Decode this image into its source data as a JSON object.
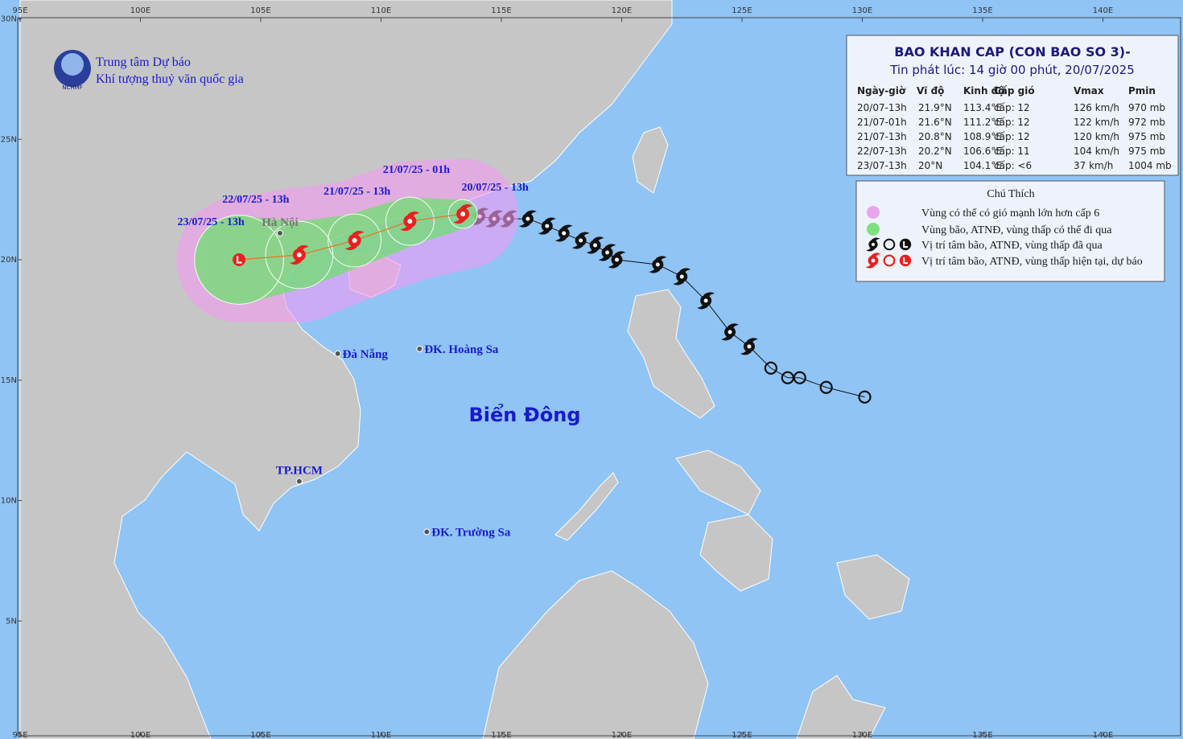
{
  "header": {
    "org_line1": "Trung tâm Dự báo",
    "org_line2": "Khí tượng thuỷ văn quốc gia",
    "logo_text": "NCHMF"
  },
  "bulletin": {
    "title": "BAO KHAN CAP (CON BAO SO 3)-",
    "issued": "Tin phát lúc: 14 giờ 00 phút, 20/07/2025",
    "columns": [
      "Ngày-giờ",
      "Vĩ độ",
      "Kinh độ",
      "Cấp gió",
      "Vmax",
      "Pmin"
    ]
  },
  "forecast": [
    {
      "time": "20/07-13h",
      "lat": 21.9,
      "lat_label": "21.9°N",
      "lon": 113.4,
      "lon_label": "113.4°E",
      "wind": "cấp: 12",
      "vmax": "126 km/h",
      "pmin": "970 mb",
      "map_label": "20/07/25 - 13h",
      "symbol": "storm",
      "r_wind": 0.6,
      "r_strong": 2.3
    },
    {
      "time": "21/07-01h",
      "lat": 21.6,
      "lat_label": "21.6°N",
      "lon": 111.2,
      "lon_label": "111.2°E",
      "wind": "cấp: 12",
      "vmax": "122 km/h",
      "pmin": "972 mb",
      "map_label": "21/07/25 - 01h",
      "symbol": "storm",
      "r_wind": 1.0,
      "r_strong": 2.5
    },
    {
      "time": "21/07-13h",
      "lat": 20.8,
      "lat_label": "20.8°N",
      "lon": 108.9,
      "lon_label": "108.9°E",
      "wind": "cấp: 12",
      "vmax": "120 km/h",
      "pmin": "975 mb",
      "map_label": "21/07/25 - 13h",
      "symbol": "storm",
      "r_wind": 1.1,
      "r_strong": 2.5
    },
    {
      "time": "22/07-13h",
      "lat": 20.2,
      "lat_label": "20.2°N",
      "lon": 106.6,
      "lon_label": "106.6°E",
      "wind": "cấp: 11",
      "vmax": "104 km/h",
      "pmin": "975 mb",
      "map_label": "22/07/25 - 13h",
      "symbol": "storm",
      "r_wind": 1.4,
      "r_strong": 2.8
    },
    {
      "time": "23/07-13h",
      "lat": 20,
      "lat_label": "20°N",
      "lon": 104.1,
      "lon_label": "104.1°E",
      "wind": "cấp: <6",
      "vmax": "37 km/h",
      "pmin": "1004 mb",
      "map_label": "23/07/25 - 13h",
      "symbol": "low",
      "r_wind": 1.85,
      "r_strong": 2.6
    }
  ],
  "past_track": {
    "storm": [
      {
        "lat": 21.8,
        "lon": 114.1
      },
      {
        "lat": 21.7,
        "lon": 114.7
      },
      {
        "lat": 21.7,
        "lon": 115.3
      },
      {
        "lat": 21.7,
        "lon": 116.1
      },
      {
        "lat": 21.4,
        "lon": 116.9
      },
      {
        "lat": 21.1,
        "lon": 117.6
      },
      {
        "lat": 20.8,
        "lon": 118.3
      },
      {
        "lat": 20.6,
        "lon": 118.9
      },
      {
        "lat": 20.3,
        "lon": 119.4
      },
      {
        "lat": 20.0,
        "lon": 119.8
      },
      {
        "lat": 19.8,
        "lon": 121.5
      },
      {
        "lat": 19.3,
        "lon": 122.5
      },
      {
        "lat": 18.3,
        "lon": 123.5
      },
      {
        "lat": 17.0,
        "lon": 124.5
      },
      {
        "lat": 16.4,
        "lon": 125.3
      }
    ],
    "depression": [
      {
        "lat": 15.5,
        "lon": 126.2
      },
      {
        "lat": 15.1,
        "lon": 126.9
      },
      {
        "lat": 15.1,
        "lon": 127.4
      },
      {
        "lat": 14.7,
        "lon": 128.5
      },
      {
        "lat": 14.3,
        "lon": 130.1
      }
    ]
  },
  "places": [
    {
      "name": "Hà Nội",
      "lat": 21.1,
      "lon": 105.8,
      "side": "above",
      "color": "#777777"
    },
    {
      "name": "Đà Nẵng",
      "lat": 16.1,
      "lon": 108.2,
      "side": "right",
      "color": "#1a1acc"
    },
    {
      "name": "ĐK. Hoàng Sa",
      "lat": 16.3,
      "lon": 111.6,
      "side": "right",
      "color": "#1a1acc"
    },
    {
      "name": "TP.HCM",
      "lat": 10.8,
      "lon": 106.6,
      "side": "above",
      "color": "#1a1acc"
    },
    {
      "name": "ĐK. Trường Sa",
      "lat": 8.7,
      "lon": 111.9,
      "side": "right",
      "color": "#1a1acc"
    }
  ],
  "sea_label": "Biển Đông",
  "lon_ticks": [
    {
      "value": 95,
      "label": "95E"
    },
    {
      "value": 100,
      "label": "100E"
    },
    {
      "value": 105,
      "label": "105E"
    },
    {
      "value": 110,
      "label": "110E"
    },
    {
      "value": 115,
      "label": "115E"
    },
    {
      "value": 120,
      "label": "120E"
    },
    {
      "value": 125,
      "label": "125E"
    },
    {
      "value": 130,
      "label": "130E"
    },
    {
      "value": 135,
      "label": "135E"
    },
    {
      "value": 140,
      "label": "140E"
    }
  ],
  "lat_ticks": [
    {
      "value": 5,
      "label": "5N"
    },
    {
      "value": 10,
      "label": "10N"
    },
    {
      "value": 15,
      "label": "15N"
    },
    {
      "value": 20,
      "label": "20N"
    },
    {
      "value": 25,
      "label": "25N"
    },
    {
      "value": 30,
      "label": "30N"
    }
  ],
  "legend": {
    "title": "Chú Thích",
    "items": [
      "Vùng có thể có gió mạnh lớn hơn cấp 6",
      "Vùng bão, ATNĐ, vùng thấp có thể đi qua",
      "Vị trí tâm bão, ATNĐ, vùng thấp đã qua",
      "Vị trí tâm bão, ATNĐ, vùng thấp hiện tại, dự báo"
    ]
  }
}
